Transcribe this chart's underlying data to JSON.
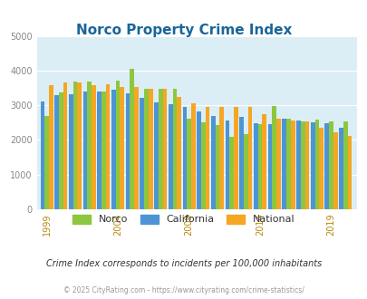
{
  "title": "Norco Property Crime Index",
  "title_color": "#1a6699",
  "years": [
    1999,
    2000,
    2001,
    2002,
    2003,
    2004,
    2005,
    2006,
    2007,
    2008,
    2009,
    2010,
    2011,
    2012,
    2013,
    2014,
    2015,
    2016,
    2017,
    2018,
    2019,
    2020
  ],
  "norco": [
    2700,
    3380,
    3680,
    3680,
    3400,
    3700,
    4050,
    3470,
    3470,
    3470,
    2600,
    2520,
    2430,
    2090,
    2170,
    2450,
    2980,
    2610,
    2530,
    2590,
    2540,
    2530
  ],
  "california": [
    3110,
    3280,
    3320,
    3390,
    3400,
    3440,
    3350,
    3220,
    3090,
    3020,
    2940,
    2820,
    2680,
    2570,
    2660,
    2490,
    2450,
    2610,
    2570,
    2520,
    2490,
    2360
  ],
  "national": [
    3590,
    3650,
    3660,
    3570,
    3600,
    3520,
    3520,
    3480,
    3480,
    3230,
    3060,
    2960,
    2940,
    2940,
    2960,
    2740,
    2620,
    2560,
    2530,
    2360,
    2220,
    2120
  ],
  "norco_color": "#8dc63f",
  "california_color": "#4d94d5",
  "national_color": "#f5a623",
  "fig_bg_color": "#ffffff",
  "plot_bg_color": "#dceef5",
  "ylim": [
    0,
    5000
  ],
  "yticks": [
    0,
    1000,
    2000,
    3000,
    4000,
    5000
  ],
  "xtick_labels": [
    "1999",
    "2004",
    "2009",
    "2014",
    "2019"
  ],
  "xtick_positions": [
    1999,
    2004,
    2009,
    2014,
    2019
  ],
  "subtitle": "Crime Index corresponds to incidents per 100,000 inhabitants",
  "footer": "© 2025 CityRating.com - https://www.cityrating.com/crime-statistics/",
  "subtitle_color": "#333333",
  "footer_color": "#999999",
  "xtick_color": "#b8860b"
}
